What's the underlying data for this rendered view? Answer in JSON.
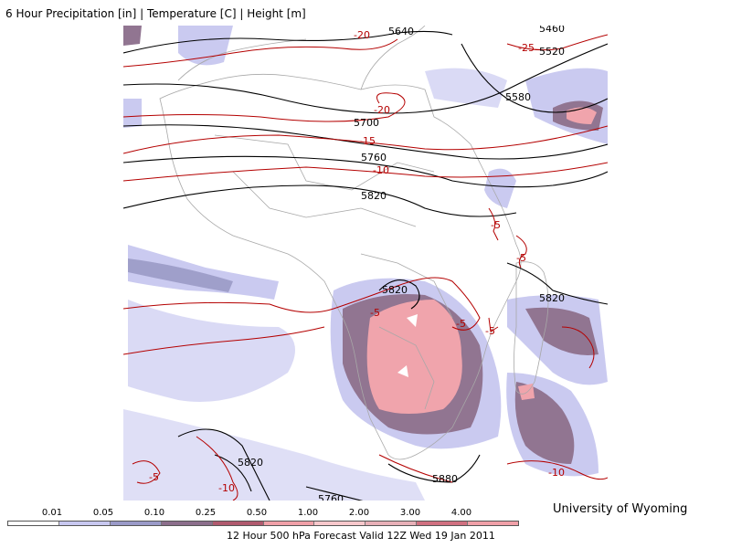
{
  "header": {
    "title": "6 Hour Precipitation [in] | Temperature [C] | Height [m]"
  },
  "footer": {
    "forecast_label": "12 Hour 500 hPa Forecast Valid 12Z Wed 19 Jan 2011",
    "credit": "University of Wyoming"
  },
  "legend": {
    "ticks": [
      "0.01",
      "0.05",
      "0.10",
      "0.25",
      "0.50",
      "1.00",
      "2.00",
      "3.00",
      "4.00"
    ],
    "colors": [
      "#ffffff",
      "#c8c8f0",
      "#9a9ac8",
      "#8c6e8c",
      "#b05a6e",
      "#f0a0a8",
      "#f8c8cc",
      "#e8b0b8",
      "#d07080",
      "#f0a0a8"
    ]
  },
  "map": {
    "height_labels": [
      "5640",
      "5460",
      "5520",
      "5580",
      "5700",
      "5760",
      "5820",
      "5820",
      "5820",
      "5820",
      "5760",
      "5880"
    ],
    "temperature_labels": [
      "-20",
      "-25",
      "-20",
      "-15",
      "-10",
      "-5",
      "-5",
      "-5",
      "-5",
      "-5",
      "-10",
      "-10",
      "-5"
    ]
  }
}
